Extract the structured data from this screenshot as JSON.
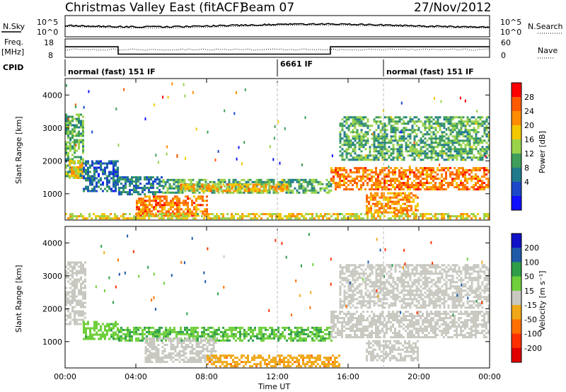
{
  "header": {
    "station": "Christmas Valley East (fitACF)",
    "beam": "Beam 07",
    "date": "27/Nov/2012"
  },
  "noise_panel": {
    "left_label": "N.Sky",
    "right_label": "N.Search",
    "left_ticks": [
      "10^5",
      "10^0"
    ],
    "right_ticks": [
      "10^5",
      "10^0"
    ]
  },
  "freq_panel": {
    "left_label_1": "Freq.",
    "left_label_2": "[MHz]",
    "right_label": "Nave",
    "left_ticks": [
      "18",
      "8"
    ],
    "right_ticks": [
      "60",
      "0"
    ]
  },
  "cpid_panel": {
    "label": "CPID",
    "segments": [
      {
        "start_hour": 0,
        "end_hour": 12,
        "name": "normal (fast) 151 IF"
      },
      {
        "start_hour": 12,
        "end_hour": 18,
        "name": "6661 IF"
      },
      {
        "start_hour": 18,
        "end_hour": 24,
        "name": "normal (fast) 151 IF"
      }
    ]
  },
  "power_panel": {
    "ylabel": "Slant Range [km]",
    "yticks": [
      "1000",
      "2000",
      "3000",
      "4000"
    ],
    "colorbar_label": "Power [dB]",
    "colorbar_ticks": [
      "28",
      "24",
      "20",
      "16",
      "12",
      "8",
      "4"
    ],
    "colorbar_colors": [
      "#ff0000",
      "#ff5a00",
      "#ff8c00",
      "#f2c800",
      "#9ad34a",
      "#3e9e5a",
      "#1f7a8c",
      "#1a48c8",
      "#1010ff"
    ]
  },
  "velocity_panel": {
    "ylabel": "Slant Range [km]",
    "yticks": [
      "1000",
      "2000",
      "3000",
      "4000"
    ],
    "colorbar_label": "Velocity [m s⁻¹]",
    "colorbar_ticks": [
      "200",
      "100",
      "50",
      "15",
      "-15",
      "-50",
      "-100",
      "-200"
    ],
    "colorbar_colors": [
      "#1010c8",
      "#1f5aa8",
      "#2e9e48",
      "#6ecf3a",
      "#c8c8c0",
      "#f0a818",
      "#ff7000",
      "#ff3000",
      "#e00000"
    ]
  },
  "x_axis": {
    "ticks": [
      "00:00",
      "04:00",
      "08:00",
      "12:00",
      "16:00",
      "20:00",
      "00:00"
    ],
    "label": "Time UT"
  },
  "chart_data": {
    "type": "heatmap",
    "x_range_hours": [
      0,
      24
    ],
    "y_range_km": [
      200,
      4500
    ],
    "power_regions": [
      {
        "t0": 0.0,
        "t1": 1.0,
        "r0": 1500,
        "r1": 3400,
        "power_db": 12
      },
      {
        "t0": 0.2,
        "t1": 1.0,
        "r0": 1450,
        "r1": 2000,
        "power_db": 20
      },
      {
        "t0": 1.0,
        "t1": 3.0,
        "r0": 1050,
        "r1": 2000,
        "power_db": 6
      },
      {
        "t0": 3.0,
        "t1": 5.5,
        "r0": 950,
        "r1": 1500,
        "power_db": 8
      },
      {
        "t0": 5.5,
        "t1": 15.0,
        "r0": 1000,
        "r1": 1450,
        "power_db": 12
      },
      {
        "t0": 6.5,
        "t1": 12.5,
        "r0": 1050,
        "r1": 1280,
        "power_db": 20
      },
      {
        "t0": 4.0,
        "t1": 8.0,
        "r0": 300,
        "r1": 900,
        "power_db": 24
      },
      {
        "t0": 0.0,
        "t1": 24.0,
        "r0": 220,
        "r1": 380,
        "power_db": 18
      },
      {
        "t0": 15.0,
        "t1": 24.0,
        "r0": 1100,
        "r1": 1800,
        "power_db": 24
      },
      {
        "t0": 15.5,
        "t1": 24.0,
        "r0": 2000,
        "r1": 3300,
        "power_db": 12
      },
      {
        "t0": 17.0,
        "t1": 20.0,
        "r0": 400,
        "r1": 1000,
        "power_db": 22
      }
    ],
    "velocity_regions": [
      {
        "t0": 0.0,
        "t1": 1.2,
        "r0": 1500,
        "r1": 3400,
        "velocity": 0
      },
      {
        "t0": 1.0,
        "t1": 3.0,
        "r0": 1050,
        "r1": 1600,
        "velocity": 40
      },
      {
        "t0": 3.0,
        "t1": 15.0,
        "r0": 1000,
        "r1": 1450,
        "velocity": 50
      },
      {
        "t0": 4.5,
        "t1": 8.5,
        "r0": 350,
        "r1": 1100,
        "velocity": 0
      },
      {
        "t0": 8.0,
        "t1": 15.5,
        "r0": 220,
        "r1": 550,
        "velocity": -40
      },
      {
        "t0": 15.0,
        "t1": 24.0,
        "r0": 1100,
        "r1": 1900,
        "velocity": 0
      },
      {
        "t0": 15.5,
        "t1": 24.0,
        "r0": 2000,
        "r1": 3300,
        "velocity": 0
      },
      {
        "t0": 17.0,
        "t1": 20.0,
        "r0": 400,
        "r1": 1000,
        "velocity": 0
      }
    ],
    "frequency_mhz": [
      {
        "t0": 0,
        "t1": 3,
        "value": 14.5
      },
      {
        "t0": 3,
        "t1": 15,
        "value": 10.5
      },
      {
        "t0": 15,
        "t1": 24,
        "value": 14.5
      }
    ]
  }
}
